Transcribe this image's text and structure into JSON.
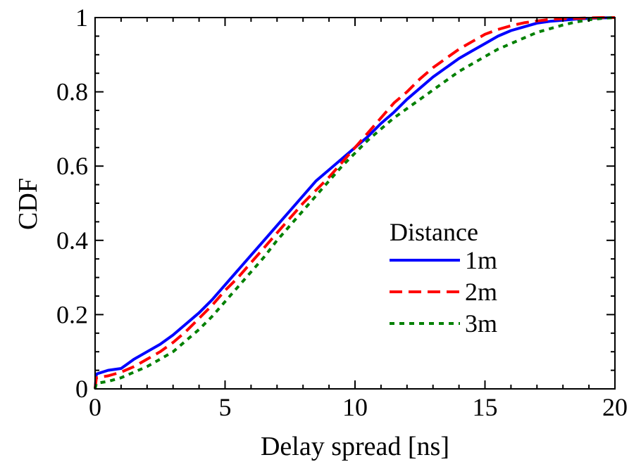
{
  "chart_data": {
    "type": "line",
    "title": "",
    "xlabel": "Delay spread [ns]",
    "ylabel": "CDF",
    "xlim": [
      0,
      20
    ],
    "ylim": [
      0,
      1
    ],
    "x_ticks": [
      "0",
      "5",
      "10",
      "15",
      "20"
    ],
    "y_ticks": [
      "0",
      "0.2",
      "0.4",
      "0.6",
      "0.8",
      "1"
    ],
    "grid": false,
    "legend": {
      "title": "Distance",
      "placement": "center-right"
    },
    "series": [
      {
        "name": "1m",
        "color": "#0000ff",
        "style": "solid",
        "x": [
          0.0,
          0.05,
          0.5,
          1.0,
          1.2,
          1.5,
          2.0,
          2.5,
          3.0,
          3.5,
          4.0,
          4.5,
          5.0,
          5.5,
          6.0,
          6.5,
          7.0,
          7.5,
          8.0,
          8.5,
          9.0,
          9.5,
          10.0,
          10.5,
          11.0,
          11.5,
          12.0,
          12.5,
          13.0,
          13.5,
          14.0,
          14.5,
          15.0,
          15.5,
          16.0,
          16.5,
          17.0,
          17.5,
          18.0,
          18.5,
          19.0,
          19.5,
          20.0
        ],
        "y": [
          0.0,
          0.04,
          0.05,
          0.055,
          0.065,
          0.08,
          0.1,
          0.12,
          0.145,
          0.175,
          0.205,
          0.24,
          0.28,
          0.32,
          0.36,
          0.4,
          0.44,
          0.48,
          0.52,
          0.56,
          0.59,
          0.62,
          0.65,
          0.68,
          0.715,
          0.745,
          0.78,
          0.81,
          0.84,
          0.865,
          0.89,
          0.91,
          0.93,
          0.95,
          0.965,
          0.975,
          0.985,
          0.99,
          0.993,
          0.996,
          0.998,
          0.999,
          1.0
        ]
      },
      {
        "name": "2m",
        "color": "#ff0000",
        "style": "dashed",
        "x": [
          0.0,
          0.05,
          0.5,
          1.0,
          1.5,
          2.0,
          2.5,
          3.0,
          3.5,
          4.0,
          4.5,
          5.0,
          5.5,
          6.0,
          6.5,
          7.0,
          7.5,
          8.0,
          8.5,
          9.0,
          9.5,
          10.0,
          10.5,
          11.0,
          11.5,
          12.0,
          12.5,
          13.0,
          13.5,
          14.0,
          14.5,
          15.0,
          15.5,
          16.0,
          16.5,
          17.0,
          17.5,
          18.0,
          18.5,
          19.0,
          19.5,
          20.0
        ],
        "y": [
          0.0,
          0.03,
          0.035,
          0.045,
          0.06,
          0.08,
          0.1,
          0.125,
          0.155,
          0.19,
          0.225,
          0.265,
          0.3,
          0.34,
          0.38,
          0.42,
          0.46,
          0.5,
          0.535,
          0.57,
          0.61,
          0.65,
          0.69,
          0.73,
          0.77,
          0.8,
          0.835,
          0.865,
          0.89,
          0.915,
          0.935,
          0.955,
          0.968,
          0.978,
          0.986,
          0.991,
          0.995,
          0.997,
          0.998,
          0.999,
          1.0,
          1.0
        ]
      },
      {
        "name": "3m",
        "color": "#008000",
        "style": "dotted",
        "x": [
          0.0,
          0.05,
          0.5,
          1.0,
          1.5,
          2.0,
          2.5,
          3.0,
          3.5,
          4.0,
          4.5,
          5.0,
          5.5,
          6.0,
          6.5,
          7.0,
          7.5,
          8.0,
          8.5,
          9.0,
          9.5,
          10.0,
          10.5,
          11.0,
          11.5,
          12.0,
          12.5,
          13.0,
          13.5,
          14.0,
          14.5,
          15.0,
          15.5,
          16.0,
          16.5,
          17.0,
          17.5,
          18.0,
          18.5,
          19.0,
          19.5,
          20.0
        ],
        "y": [
          0.0,
          0.015,
          0.02,
          0.03,
          0.045,
          0.06,
          0.08,
          0.1,
          0.13,
          0.16,
          0.195,
          0.235,
          0.275,
          0.315,
          0.355,
          0.4,
          0.44,
          0.48,
          0.52,
          0.56,
          0.6,
          0.635,
          0.67,
          0.7,
          0.73,
          0.755,
          0.78,
          0.805,
          0.83,
          0.855,
          0.875,
          0.895,
          0.915,
          0.93,
          0.945,
          0.96,
          0.97,
          0.98,
          0.988,
          0.994,
          0.998,
          1.0
        ]
      }
    ]
  }
}
